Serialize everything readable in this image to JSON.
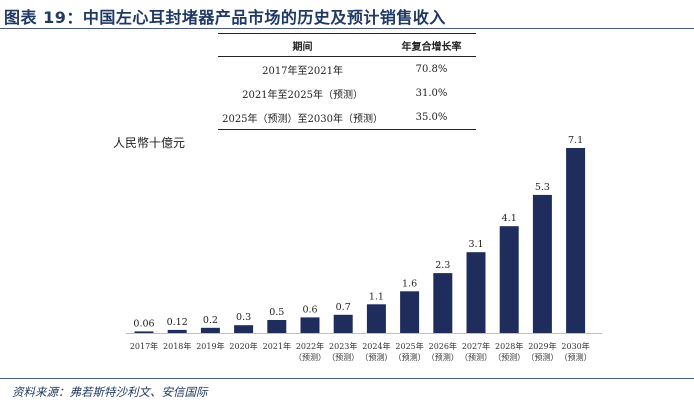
{
  "title": "图表 19：中国左心耳封堵器产品市场的历史及预计销售收入",
  "table": {
    "headers": [
      "期间",
      "年复合增长率"
    ],
    "rows": [
      {
        "period": "2017年至2021年",
        "rate": "70.8%"
      },
      {
        "period": "2021年至2025年（预测）",
        "rate": "31.0%"
      },
      {
        "period": "2025年（预测）至2030年（预测）",
        "rate": "35.0%"
      }
    ]
  },
  "chart_data": {
    "type": "bar",
    "ylabel": "人民幣十億元",
    "categories": [
      "2017年",
      "2018年",
      "2019年",
      "2020年",
      "2021年",
      "2022年（预测）",
      "2023年（预测）",
      "2024年（预测）",
      "2025年（预测）",
      "2026年（预测）",
      "2027年（预测）",
      "2028年（预测）",
      "2029年（预测）",
      "2030年（预测）"
    ],
    "category_lines": [
      [
        "2017年"
      ],
      [
        "2018年"
      ],
      [
        "2019年"
      ],
      [
        "2020年"
      ],
      [
        "2021年"
      ],
      [
        "2022年",
        "（预测）"
      ],
      [
        "2023年",
        "（预测）"
      ],
      [
        "2024年",
        "（预测）"
      ],
      [
        "2025年",
        "（预测）"
      ],
      [
        "2026年",
        "（预测）"
      ],
      [
        "2027年",
        "（预测）"
      ],
      [
        "2028年",
        "（预测）"
      ],
      [
        "2029年",
        "（预测）"
      ],
      [
        "2030年",
        "（预测）"
      ]
    ],
    "values": [
      0.06,
      0.12,
      0.2,
      0.3,
      0.5,
      0.6,
      0.7,
      1.1,
      1.6,
      2.3,
      3.1,
      4.1,
      5.3,
      7.1
    ],
    "value_labels": [
      "0.06",
      "0.12",
      "0.2",
      "0.3",
      "0.5",
      "0.6",
      "0.7",
      "1.1",
      "1.6",
      "2.3",
      "3.1",
      "4.1",
      "5.3",
      "7.1"
    ],
    "ylim": [
      0,
      7.1
    ],
    "grid": false,
    "bar_color": "#1f2d5c"
  },
  "source": "资料来源：弗若斯特沙利文、安信国际"
}
